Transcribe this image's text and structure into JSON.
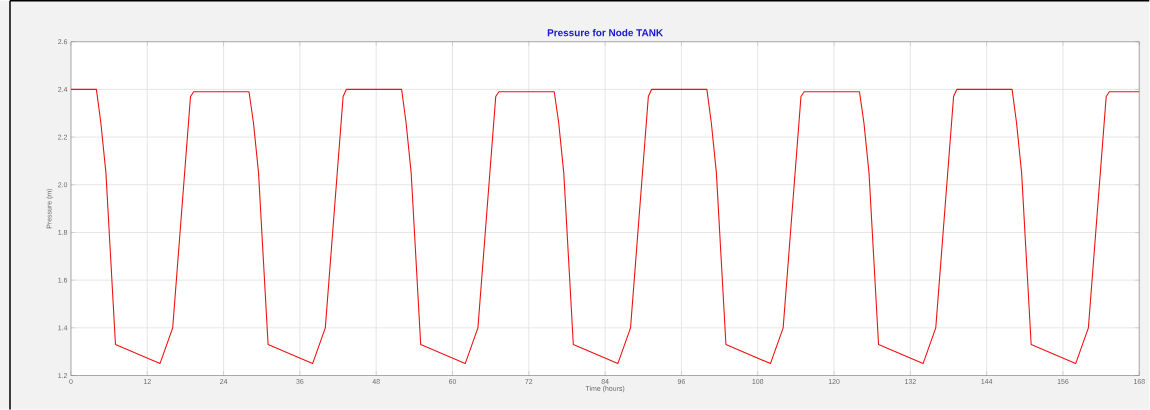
{
  "chart_data": {
    "type": "line",
    "title": "Pressure for Node TANK",
    "xlabel": "Time (hours)",
    "ylabel": "Pressure (m)",
    "x": [
      0,
      4,
      4.7,
      5.5,
      7,
      14,
      16,
      18.8,
      19.3,
      28,
      28.7,
      29.5,
      31,
      38,
      40,
      42.8,
      43.3,
      52,
      52.7,
      53.5,
      55,
      62,
      64,
      66.8,
      67.3,
      76,
      76.7,
      77.5,
      79,
      86,
      88,
      90.8,
      91.3,
      100,
      100.7,
      101.5,
      103,
      110,
      112,
      114.8,
      115.3,
      124,
      124.7,
      125.5,
      127,
      134,
      136,
      138.8,
      139.3,
      148,
      148.7,
      149.5,
      151,
      158,
      160,
      162.8,
      163.3,
      168
    ],
    "series": [
      {
        "color": "#ee1111",
        "values": [
          2.4,
          2.4,
          2.26,
          2.05,
          1.33,
          1.25,
          1.4,
          2.37,
          2.39,
          2.39,
          2.26,
          2.05,
          1.33,
          1.25,
          1.4,
          2.37,
          2.4,
          2.4,
          2.26,
          2.05,
          1.33,
          1.25,
          1.4,
          2.37,
          2.39,
          2.39,
          2.26,
          2.05,
          1.33,
          1.25,
          1.4,
          2.37,
          2.4,
          2.4,
          2.26,
          2.05,
          1.33,
          1.25,
          1.4,
          2.37,
          2.39,
          2.39,
          2.26,
          2.05,
          1.33,
          1.25,
          1.4,
          2.37,
          2.4,
          2.4,
          2.26,
          2.05,
          1.33,
          1.25,
          1.4,
          2.37,
          2.39,
          2.39
        ]
      }
    ],
    "xlim": [
      0,
      168
    ],
    "ylim": [
      1.2,
      2.6
    ],
    "xticks": [
      0,
      12,
      24,
      36,
      48,
      60,
      72,
      84,
      96,
      108,
      120,
      132,
      144,
      156,
      168
    ],
    "yticks": [
      1.2,
      1.4,
      1.6,
      1.8,
      {
        "value": 2,
        "label": "2.0"
      },
      2.2,
      2.4,
      2.6
    ],
    "grid": true
  }
}
